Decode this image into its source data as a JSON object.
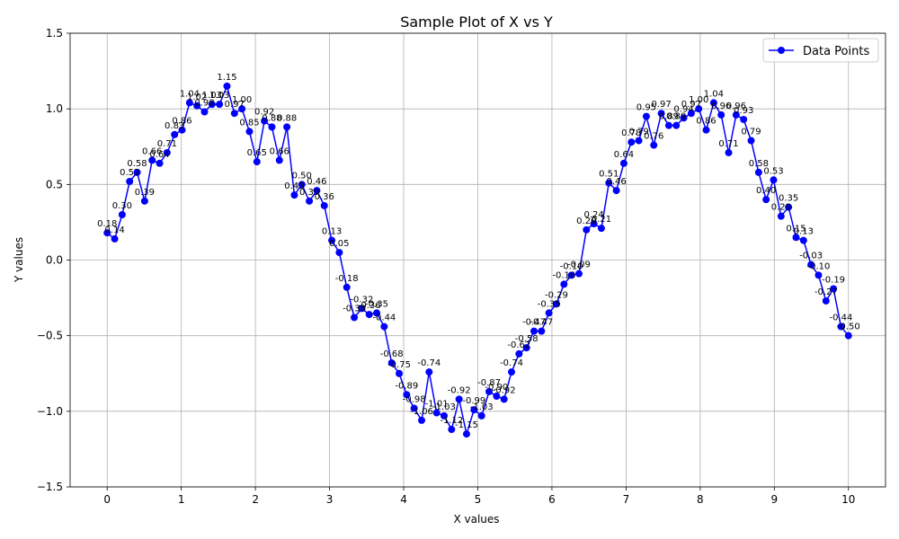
{
  "chart_data": {
    "type": "line",
    "title": "Sample Plot of X vs Y",
    "xlabel": "X values",
    "ylabel": "Y values",
    "xlim": [
      -0.5,
      10.5
    ],
    "ylim": [
      -1.5,
      1.5
    ],
    "xticks": [
      0,
      1,
      2,
      3,
      4,
      5,
      6,
      7,
      8,
      9,
      10
    ],
    "yticks": [
      -1.5,
      -1.0,
      -0.5,
      0.0,
      0.5,
      1.0,
      1.5
    ],
    "xtick_labels": [
      "0",
      "1",
      "2",
      "3",
      "4",
      "5",
      "6",
      "7",
      "8",
      "9",
      "10"
    ],
    "ytick_labels": [
      "−1.5",
      "−1.0",
      "−0.5",
      "0.0",
      "0.5",
      "1.0",
      "1.5"
    ],
    "grid": true,
    "legend_position": "upper right",
    "colors": {
      "series": "#0000ff",
      "grid": "#b0b0b0",
      "axis": "#000000"
    },
    "series": [
      {
        "name": "Data Points",
        "marker": "circle",
        "x": [
          0.0,
          0.101,
          0.202,
          0.303,
          0.404,
          0.505,
          0.606,
          0.707,
          0.808,
          0.909,
          1.01,
          1.111,
          1.212,
          1.313,
          1.414,
          1.515,
          1.616,
          1.717,
          1.818,
          1.919,
          2.02,
          2.121,
          2.222,
          2.323,
          2.424,
          2.525,
          2.626,
          2.727,
          2.828,
          2.929,
          3.03,
          3.131,
          3.232,
          3.333,
          3.434,
          3.535,
          3.636,
          3.737,
          3.838,
          3.939,
          4.04,
          4.141,
          4.242,
          4.343,
          4.444,
          4.545,
          4.646,
          4.747,
          4.848,
          4.949,
          5.051,
          5.152,
          5.253,
          5.354,
          5.455,
          5.556,
          5.657,
          5.758,
          5.859,
          5.96,
          6.061,
          6.162,
          6.263,
          6.364,
          6.465,
          6.566,
          6.667,
          6.768,
          6.869,
          6.97,
          7.071,
          7.172,
          7.273,
          7.374,
          7.475,
          7.576,
          7.677,
          7.778,
          7.879,
          7.98,
          8.081,
          8.182,
          8.283,
          8.384,
          8.485,
          8.586,
          8.687,
          8.788,
          8.889,
          8.99,
          9.091,
          9.192,
          9.293,
          9.394,
          9.495,
          9.596,
          9.697,
          9.798,
          9.899,
          10.0
        ],
        "y": [
          0.18,
          0.14,
          0.3,
          0.52,
          0.58,
          0.39,
          0.66,
          0.64,
          0.71,
          0.83,
          0.86,
          1.04,
          1.02,
          0.98,
          1.03,
          1.03,
          1.15,
          0.97,
          1.0,
          0.85,
          0.65,
          0.92,
          0.88,
          0.66,
          0.88,
          0.43,
          0.5,
          0.39,
          0.46,
          0.36,
          0.13,
          0.05,
          -0.18,
          -0.38,
          -0.32,
          -0.36,
          -0.35,
          -0.44,
          -0.68,
          -0.75,
          -0.89,
          -0.98,
          -1.06,
          -0.74,
          -1.01,
          -1.03,
          -1.12,
          -0.92,
          -1.15,
          -0.99,
          -1.03,
          -0.87,
          -0.9,
          -0.92,
          -0.74,
          -0.62,
          -0.58,
          -0.47,
          -0.47,
          -0.35,
          -0.29,
          -0.16,
          -0.1,
          -0.09,
          0.2,
          0.24,
          0.21,
          0.51,
          0.46,
          0.64,
          0.78,
          0.79,
          0.95,
          0.76,
          0.97,
          0.89,
          0.89,
          0.94,
          0.97,
          1.0,
          0.86,
          1.04,
          0.96,
          0.71,
          0.96,
          0.93,
          0.79,
          0.58,
          0.4,
          0.53,
          0.29,
          0.35,
          0.15,
          0.13,
          -0.03,
          -0.1,
          -0.27,
          -0.19,
          -0.44,
          -0.5
        ],
        "labels": [
          "0.18",
          "0.14",
          "0.30",
          "0.52",
          "0.58",
          "0.39",
          "0.66",
          "0.64",
          "0.71",
          "0.83",
          "0.86",
          "1.04",
          "1.02",
          "0.98",
          "1.03",
          "1.03",
          "1.15",
          "0.97",
          "1.00",
          "0.85",
          "0.65",
          "0.92",
          "0.88",
          "0.66",
          "0.88",
          "0.43",
          "0.50",
          "0.39",
          "0.46",
          "0.36",
          "0.13",
          "0.05",
          "-0.18",
          "-0.38",
          "-0.32",
          "-0.36",
          "-0.35",
          "-0.44",
          "-0.68",
          "-0.75",
          "-0.89",
          "-0.98",
          "-1.06",
          "-0.74",
          "-1.01",
          "-1.03",
          "-1.12",
          "-0.92",
          "-1.15",
          "-0.99",
          "-1.03",
          "-0.87",
          "-0.90",
          "-0.92",
          "-0.74",
          "-0.62",
          "-0.58",
          "-0.47",
          "-0.47",
          "-0.35",
          "-0.29",
          "-0.16",
          "-0.10",
          "-0.09",
          "0.20",
          "0.24",
          "0.21",
          "0.51",
          "0.46",
          "0.64",
          "0.78",
          "0.79",
          "0.95",
          "0.76",
          "0.97",
          "0.89",
          "0.89",
          "0.94",
          "0.97",
          "1.00",
          "0.86",
          "1.04",
          "0.96",
          "0.71",
          "0.96",
          "0.93",
          "0.79",
          "0.58",
          "0.40",
          "0.53",
          "0.29",
          "0.35",
          "0.15",
          "0.13",
          "-0.03",
          "-0.10",
          "-0.27",
          "-0.19",
          "-0.44",
          "-0.50"
        ]
      }
    ]
  }
}
